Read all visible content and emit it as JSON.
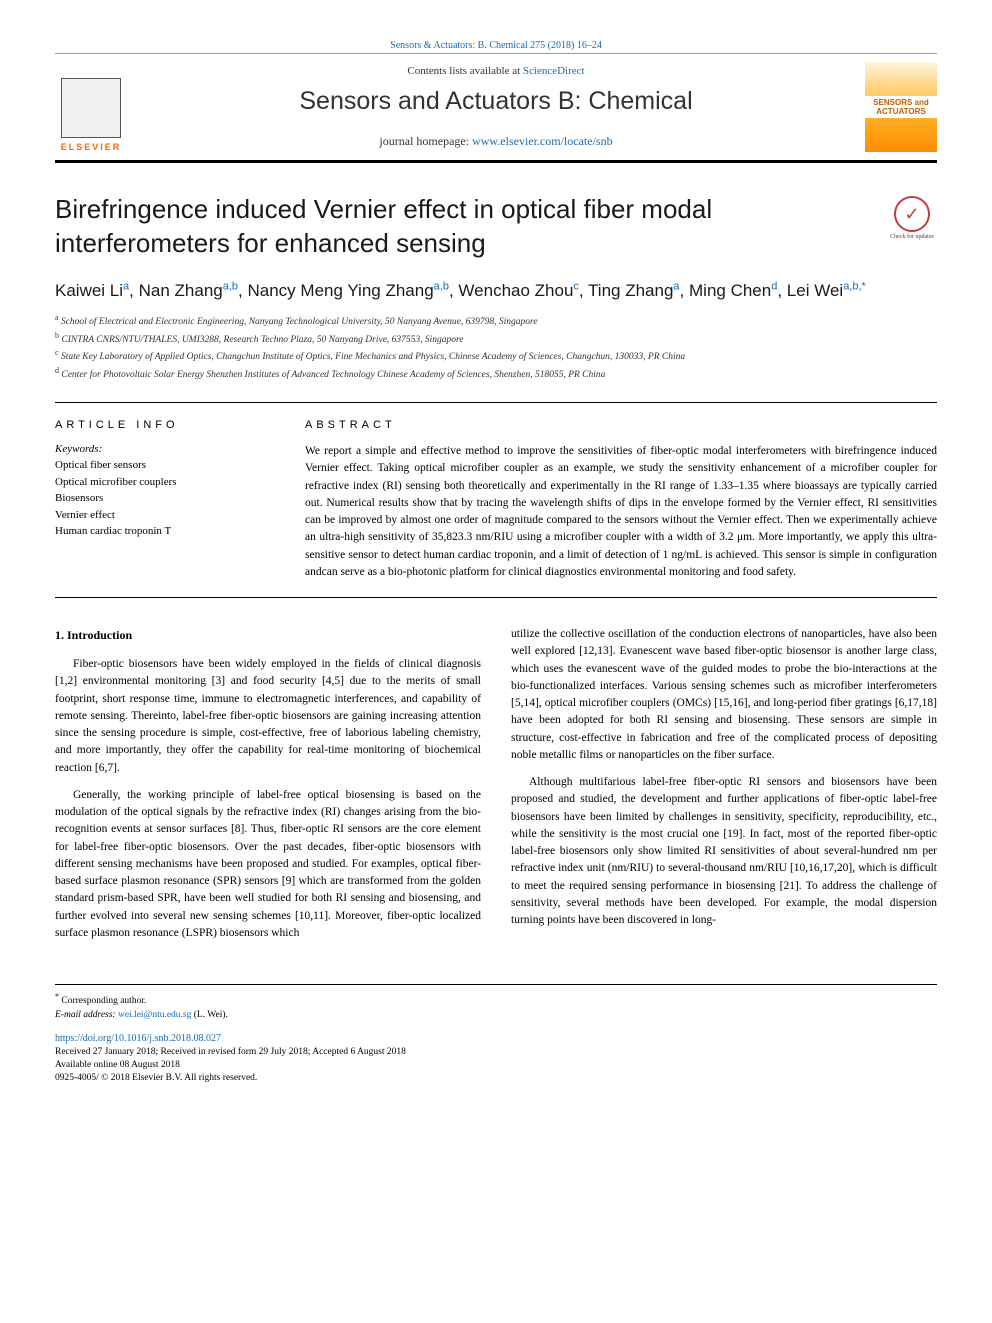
{
  "citation": "Sensors & Actuators: B. Chemical 275 (2018) 16–24",
  "header": {
    "contents_prefix": "Contents lists available at ",
    "contents_link": "ScienceDirect",
    "journal_title": "Sensors and Actuators B: Chemical",
    "homepage_prefix": "journal homepage: ",
    "homepage_link": "www.elsevier.com/locate/snb",
    "publisher": "ELSEVIER",
    "cover_text": "SENSORS and ACTUATORS"
  },
  "article": {
    "title": "Birefringence induced Vernier effect in optical fiber modal interferometers for enhanced sensing",
    "updates_badge": "Check for updates"
  },
  "authors": [
    {
      "name": "Kaiwei Li",
      "aff": "a"
    },
    {
      "name": "Nan Zhang",
      "aff": "a,b"
    },
    {
      "name": "Nancy Meng Ying Zhang",
      "aff": "a,b"
    },
    {
      "name": "Wenchao Zhou",
      "aff": "c"
    },
    {
      "name": "Ting Zhang",
      "aff": "a"
    },
    {
      "name": "Ming Chen",
      "aff": "d"
    },
    {
      "name": "Lei Wei",
      "aff": "a,b,*"
    }
  ],
  "affiliations": [
    {
      "key": "a",
      "text": "School of Electrical and Electronic Engineering, Nanyang Technological University, 50 Nanyang Avenue, 639798, Singapore"
    },
    {
      "key": "b",
      "text": "CINTRA CNRS/NTU/THALES, UMI3288, Research Techno Plaza, 50 Nanyang Drive, 637553, Singapore"
    },
    {
      "key": "c",
      "text": "State Key Laboratory of Applied Optics, Changchun Institute of Optics, Fine Mechanics and Physics, Chinese Academy of Sciences, Changchun, 130033, PR China"
    },
    {
      "key": "d",
      "text": "Center for Photovoltaic Solar Energy Shenzhen Institutes of Advanced Technology Chinese Academy of Sciences, Shenzhen, 518055, PR China"
    }
  ],
  "info_headings": {
    "article_info": "ARTICLE INFO",
    "abstract": "ABSTRACT",
    "keywords_label": "Keywords:"
  },
  "keywords": [
    "Optical fiber sensors",
    "Optical microfiber couplers",
    "Biosensors",
    "Vernier effect",
    "Human cardiac troponin T"
  ],
  "abstract": "We report a simple and effective method to improve the sensitivities of fiber-optic modal interferometers with birefringence induced Vernier effect. Taking optical microfiber coupler as an example, we study the sensitivity enhancement of a microfiber coupler for refractive index (RI) sensing both theoretically and experimentally in the RI range of 1.33–1.35 where bioassays are typically carried out. Numerical results show that by tracing the wavelength shifts of dips in the envelope formed by the Vernier effect, RI sensitivities can be improved by almost one order of magnitude compared to the sensors without the Vernier effect. Then we experimentally achieve an ultra-high sensitivity of 35,823.3 nm/RIU using a microfiber coupler with a width of 3.2 μm. More importantly, we apply this ultra-sensitive sensor to detect human cardiac troponin, and a limit of detection of 1 ng/mL is achieved. This sensor is simple in configuration andcan serve as a bio-photonic platform for clinical diagnostics environmental monitoring and food safety.",
  "body": {
    "section_heading": "1. Introduction",
    "left_paragraphs": [
      "Fiber-optic biosensors have been widely employed in the fields of clinical diagnosis [1,2] environmental monitoring [3] and food security [4,5] due to the merits of small footprint, short response time, immune to electromagnetic interferences, and capability of remote sensing. Thereinto, label-free fiber-optic biosensors are gaining increasing attention since the sensing procedure is simple, cost-effective, free of laborious labeling chemistry, and more importantly, they offer the capability for real-time monitoring of biochemical reaction [6,7].",
      "Generally, the working principle of label-free optical biosensing is based on the modulation of the optical signals by the refractive index (RI) changes arising from the bio-recognition events at sensor surfaces [8]. Thus, fiber-optic RI sensors are the core element for label-free fiber-optic biosensors. Over the past decades, fiber-optic biosensors with different sensing mechanisms have been proposed and studied. For examples, optical fiber-based surface plasmon resonance (SPR) sensors [9] which are transformed from the golden standard prism-based SPR, have been well studied for both RI sensing and biosensing, and further evolved into several new sensing schemes [10,11]. Moreover, fiber-optic localized surface plasmon resonance (LSPR) biosensors which"
    ],
    "right_paragraphs": [
      "utilize the collective oscillation of the conduction electrons of nanoparticles, have also been well explored [12,13]. Evanescent wave based fiber-optic biosensor is another large class, which uses the evanescent wave of the guided modes to probe the bio-interactions at the bio-functionalized interfaces. Various sensing schemes such as microfiber interferometers [5,14], optical microfiber couplers (OMCs) [15,16], and long-period fiber gratings [6,17,18] have been adopted for both RI sensing and biosensing. These sensors are simple in structure, cost-effective in fabrication and free of the complicated process of depositing noble metallic films or nanoparticles on the fiber surface.",
      "Although multifarious label-free fiber-optic RI sensors and biosensors have been proposed and studied, the development and further applications of fiber-optic label-free biosensors have been limited by challenges in sensitivity, specificity, reproducibility, etc., while the sensitivity is the most crucial one [19]. In fact, most of the reported fiber-optic label-free biosensors only show limited RI sensitivities of about several-hundred nm per refractive index unit (nm/RIU) to several-thousand nm/RIU [10,16,17,20], which is difficult to meet the required sensing performance in biosensing [21]. To address the challenge of sensitivity, several methods have been developed. For example, the modal dispersion turning points have been discovered in long-"
    ]
  },
  "footer": {
    "corresp": "Corresponding author.",
    "email_label": "E-mail address: ",
    "email": "wei.lei@ntu.edu.sg",
    "email_attr": " (L. Wei).",
    "doi": "https://doi.org/10.1016/j.snb.2018.08.027",
    "dates": "Received 27 January 2018; Received in revised form 29 July 2018; Accepted 6 August 2018",
    "available": "Available online 08 August 2018",
    "copyright": "0925-4005/ © 2018 Elsevier B.V. All rights reserved."
  },
  "styling": {
    "link_color": "#1a6baf",
    "text_color": "#000000",
    "border_color": "#000000",
    "body_fontsize": 11.5,
    "title_fontsize": 26,
    "journal_title_fontsize": 25,
    "authors_fontsize": 17,
    "background_color": "#ffffff"
  }
}
